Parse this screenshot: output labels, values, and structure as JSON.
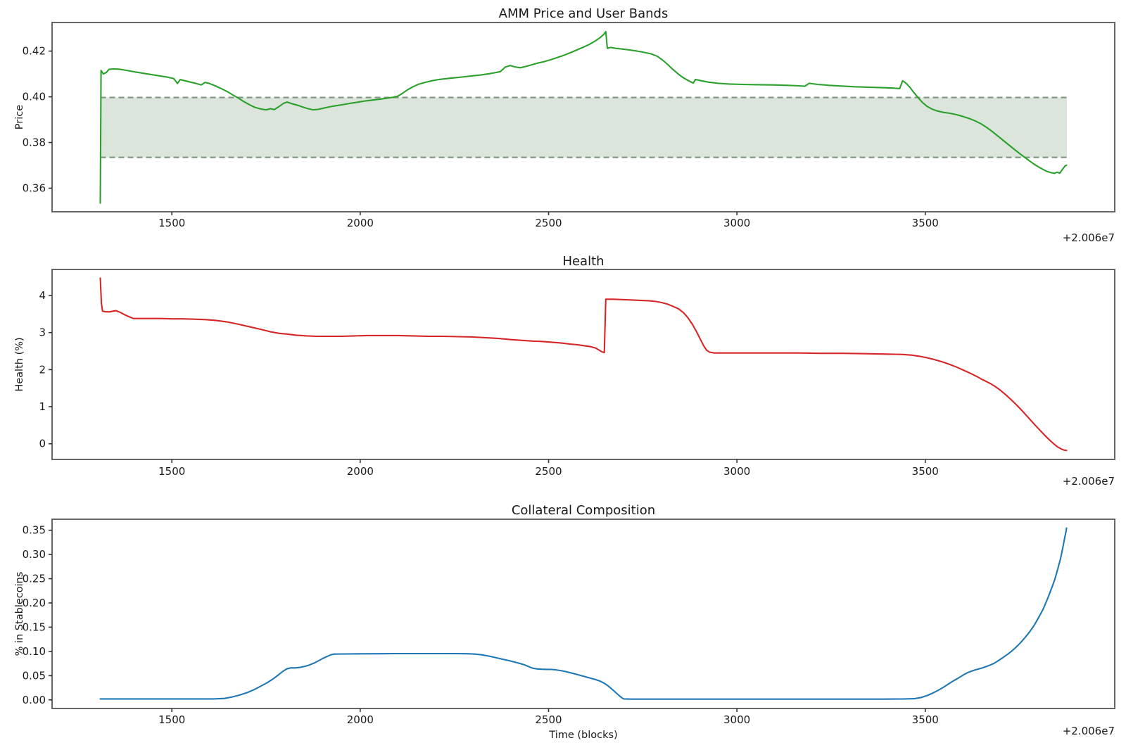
{
  "figure_background": "#ffffff",
  "spine_color": "#555555",
  "chart_data": [
    {
      "type": "line",
      "title": "AMM Price and User Bands",
      "xlabel": "",
      "ylabel": "Price",
      "x_offset_label": "+2.006e7",
      "xlim": [
        1182,
        4003
      ],
      "ylim": [
        0.3497,
        0.4325
      ],
      "xticks": [
        1500,
        2000,
        2500,
        3000,
        3500
      ],
      "xtick_labels": [
        "1500",
        "2000",
        "2500",
        "3000",
        "3500"
      ],
      "yticks": [
        0.36,
        0.38,
        0.4,
        0.42
      ],
      "ytick_labels": [
        "0.36",
        "0.38",
        "0.40",
        "0.42"
      ],
      "grid": false,
      "legend": "none",
      "line_color": "#2ca02c",
      "band": {
        "ymin": 0.3735,
        "ymax": 0.3997,
        "xmin": 1310,
        "xmax": 3876,
        "fill_color": "#dce5dc",
        "edge_color": "#7f957f",
        "edge_style": "dashed"
      },
      "series": [
        {
          "x": [
            1310,
            1312,
            1318,
            1326,
            1333,
            1345,
            1360,
            1378,
            1398,
            1420,
            1442,
            1465,
            1488,
            1505,
            1515,
            1522,
            1535,
            1550,
            1565,
            1578,
            1588,
            1600,
            1615,
            1632,
            1648,
            1662,
            1675,
            1690,
            1705,
            1720,
            1735,
            1750,
            1762,
            1772,
            1785,
            1797,
            1806,
            1818,
            1832,
            1848,
            1862,
            1875,
            1888,
            1902,
            1918,
            1935,
            1955,
            1975,
            1995,
            2015,
            2035,
            2055,
            2072,
            2088,
            2100,
            2112,
            2125,
            2140,
            2155,
            2172,
            2190,
            2210,
            2232,
            2255,
            2278,
            2300,
            2322,
            2342,
            2360,
            2372,
            2385,
            2398,
            2410,
            2425,
            2440,
            2455,
            2470,
            2488,
            2505,
            2522,
            2540,
            2558,
            2575,
            2592,
            2608,
            2623,
            2636,
            2646,
            2652,
            2656,
            2665,
            2678,
            2695,
            2715,
            2735,
            2755,
            2772,
            2788,
            2802,
            2816,
            2830,
            2844,
            2858,
            2872,
            2884,
            2890,
            2905,
            2925,
            2950,
            2980,
            3015,
            3055,
            3095,
            3135,
            3165,
            3180,
            3192,
            3215,
            3245,
            3278,
            3312,
            3348,
            3385,
            3415,
            3432,
            3440,
            3450,
            3460,
            3470,
            3480,
            3492,
            3505,
            3518,
            3532,
            3548,
            3565,
            3582,
            3598,
            3615,
            3632,
            3648,
            3663,
            3678,
            3693,
            3708,
            3723,
            3738,
            3752,
            3765,
            3778,
            3790,
            3802,
            3813,
            3824,
            3834,
            3843,
            3850,
            3857,
            3864,
            3871,
            3875
          ],
          "y": [
            0.3535,
            0.4115,
            0.41,
            0.4106,
            0.412,
            0.4122,
            0.4121,
            0.4116,
            0.411,
            0.4104,
            0.4098,
            0.4092,
            0.4086,
            0.408,
            0.4058,
            0.4075,
            0.407,
            0.4064,
            0.4058,
            0.4052,
            0.4063,
            0.4058,
            0.4048,
            0.4035,
            0.4022,
            0.4008,
            0.3996,
            0.398,
            0.3966,
            0.3954,
            0.3947,
            0.3943,
            0.3948,
            0.3944,
            0.3958,
            0.3972,
            0.3977,
            0.397,
            0.3964,
            0.3955,
            0.3948,
            0.3943,
            0.3945,
            0.395,
            0.3956,
            0.3961,
            0.3966,
            0.3972,
            0.3977,
            0.3982,
            0.3986,
            0.399,
            0.3994,
            0.3998,
            0.4003,
            0.4015,
            0.403,
            0.4044,
            0.4055,
            0.4063,
            0.407,
            0.4076,
            0.408,
            0.4084,
            0.4088,
            0.4092,
            0.4096,
            0.4101,
            0.4106,
            0.411,
            0.413,
            0.4137,
            0.4131,
            0.4127,
            0.4133,
            0.414,
            0.4147,
            0.4154,
            0.4162,
            0.4171,
            0.4181,
            0.4193,
            0.4205,
            0.4217,
            0.4229,
            0.4243,
            0.4258,
            0.4272,
            0.4285,
            0.4212,
            0.4216,
            0.4212,
            0.4209,
            0.4205,
            0.42,
            0.4194,
            0.4188,
            0.4178,
            0.4162,
            0.4142,
            0.412,
            0.41,
            0.4083,
            0.407,
            0.406,
            0.4076,
            0.407,
            0.4064,
            0.4059,
            0.4056,
            0.4054,
            0.4053,
            0.4052,
            0.405,
            0.4048,
            0.4046,
            0.4059,
            0.4054,
            0.405,
            0.4047,
            0.4044,
            0.4042,
            0.404,
            0.4038,
            0.4036,
            0.407,
            0.4058,
            0.404,
            0.4018,
            0.3998,
            0.3976,
            0.3958,
            0.3946,
            0.3938,
            0.3932,
            0.3928,
            0.3922,
            0.3915,
            0.3906,
            0.3895,
            0.3882,
            0.3866,
            0.3848,
            0.3828,
            0.3808,
            0.3788,
            0.3768,
            0.375,
            0.3734,
            0.3718,
            0.3704,
            0.3692,
            0.3682,
            0.3673,
            0.3668,
            0.3665,
            0.367,
            0.3666,
            0.3682,
            0.3697,
            0.3701
          ]
        }
      ]
    },
    {
      "type": "line",
      "title": "Health",
      "xlabel": "",
      "ylabel": "Health (%)",
      "x_offset_label": "+2.006e7",
      "xlim": [
        1182,
        4003
      ],
      "ylim": [
        -0.423,
        4.703
      ],
      "xticks": [
        1500,
        2000,
        2500,
        3000,
        3500
      ],
      "xtick_labels": [
        "1500",
        "2000",
        "2500",
        "3000",
        "3500"
      ],
      "yticks": [
        0,
        1,
        2,
        3,
        4
      ],
      "ytick_labels": [
        "0",
        "1",
        "2",
        "3",
        "4"
      ],
      "grid": false,
      "legend": "none",
      "line_color": "#d62728",
      "series": [
        {
          "x": [
            1310,
            1313,
            1316,
            1325,
            1336,
            1344,
            1352,
            1362,
            1375,
            1388,
            1398,
            1415,
            1440,
            1470,
            1500,
            1530,
            1560,
            1590,
            1615,
            1645,
            1675,
            1705,
            1735,
            1762,
            1785,
            1805,
            1830,
            1858,
            1885,
            1915,
            1950,
            1985,
            2020,
            2060,
            2100,
            2140,
            2180,
            2220,
            2260,
            2300,
            2335,
            2368,
            2400,
            2430,
            2458,
            2482,
            2508,
            2532,
            2556,
            2578,
            2598,
            2612,
            2625,
            2634,
            2642,
            2648,
            2652,
            2672,
            2695,
            2718,
            2742,
            2765,
            2785,
            2800,
            2815,
            2830,
            2845,
            2858,
            2870,
            2882,
            2893,
            2903,
            2912,
            2920,
            2928,
            2940,
            2980,
            3040,
            3100,
            3160,
            3220,
            3280,
            3340,
            3400,
            3440,
            3465,
            3485,
            3505,
            3525,
            3545,
            3565,
            3585,
            3605,
            3622,
            3638,
            3650,
            3660,
            3672,
            3685,
            3700,
            3715,
            3730,
            3745,
            3760,
            3775,
            3790,
            3805,
            3818,
            3830,
            3842,
            3852,
            3861,
            3868,
            3875
          ],
          "y": [
            4.47,
            3.8,
            3.58,
            3.56,
            3.56,
            3.58,
            3.59,
            3.55,
            3.48,
            3.42,
            3.38,
            3.38,
            3.38,
            3.38,
            3.37,
            3.37,
            3.36,
            3.35,
            3.33,
            3.29,
            3.23,
            3.16,
            3.09,
            3.02,
            2.98,
            2.96,
            2.93,
            2.91,
            2.9,
            2.9,
            2.9,
            2.91,
            2.92,
            2.92,
            2.92,
            2.91,
            2.9,
            2.9,
            2.89,
            2.88,
            2.86,
            2.84,
            2.81,
            2.79,
            2.77,
            2.76,
            2.74,
            2.72,
            2.69,
            2.67,
            2.64,
            2.62,
            2.58,
            2.53,
            2.48,
            2.46,
            3.9,
            3.9,
            3.89,
            3.88,
            3.87,
            3.86,
            3.84,
            3.81,
            3.77,
            3.71,
            3.64,
            3.54,
            3.4,
            3.22,
            3.02,
            2.82,
            2.64,
            2.52,
            2.47,
            2.45,
            2.45,
            2.45,
            2.45,
            2.45,
            2.44,
            2.44,
            2.43,
            2.42,
            2.41,
            2.39,
            2.36,
            2.32,
            2.27,
            2.21,
            2.14,
            2.06,
            1.97,
            1.89,
            1.81,
            1.74,
            1.69,
            1.63,
            1.55,
            1.44,
            1.31,
            1.17,
            1.02,
            0.86,
            0.69,
            0.52,
            0.36,
            0.22,
            0.1,
            -0.01,
            -0.09,
            -0.14,
            -0.17,
            -0.18
          ]
        }
      ]
    },
    {
      "type": "line",
      "title": "Collateral Composition",
      "xlabel": "Time (blocks)",
      "ylabel": "% in Stablecoins",
      "x_offset_label": "+2.006e7",
      "xlim": [
        1182,
        4003
      ],
      "ylim": [
        -0.01775,
        0.37275
      ],
      "xticks": [
        1500,
        2000,
        2500,
        3000,
        3500
      ],
      "xtick_labels": [
        "1500",
        "2000",
        "2500",
        "3000",
        "3500"
      ],
      "yticks": [
        0.0,
        0.05,
        0.1,
        0.15,
        0.2,
        0.25,
        0.3,
        0.35
      ],
      "ytick_labels": [
        "0.00",
        "0.05",
        "0.10",
        "0.15",
        "0.20",
        "0.25",
        "0.30",
        "0.35"
      ],
      "grid": false,
      "legend": "none",
      "line_color": "#1f77b4",
      "series": [
        {
          "x": [
            1310,
            1400,
            1500,
            1560,
            1610,
            1640,
            1660,
            1680,
            1700,
            1718,
            1735,
            1752,
            1768,
            1782,
            1795,
            1805,
            1815,
            1828,
            1840,
            1852,
            1865,
            1878,
            1890,
            1902,
            1913,
            1922,
            1930,
            1960,
            2000,
            2050,
            2090,
            2130,
            2170,
            2210,
            2250,
            2285,
            2305,
            2322,
            2340,
            2358,
            2375,
            2392,
            2408,
            2422,
            2435,
            2445,
            2452,
            2460,
            2470,
            2482,
            2495,
            2508,
            2520,
            2532,
            2545,
            2558,
            2570,
            2582,
            2592,
            2600,
            2608,
            2616,
            2624,
            2632,
            2640,
            2648,
            2656,
            2664,
            2672,
            2680,
            2688,
            2695,
            2700,
            2720,
            2760,
            2820,
            2900,
            3000,
            3100,
            3200,
            3300,
            3380,
            3440,
            3470,
            3490,
            3505,
            3520,
            3535,
            3548,
            3560,
            3572,
            3583,
            3593,
            3602,
            3612,
            3622,
            3632,
            3642,
            3652,
            3662,
            3672,
            3682,
            3690,
            3698,
            3706,
            3714,
            3722,
            3730,
            3738,
            3746,
            3754,
            3762,
            3770,
            3778,
            3786,
            3793,
            3800,
            3807,
            3814,
            3820,
            3826,
            3832,
            3838,
            3844,
            3849,
            3854,
            3859,
            3863,
            3867,
            3871,
            3874,
            3875
          ],
          "y": [
            0.002,
            0.002,
            0.002,
            0.002,
            0.002,
            0.003,
            0.006,
            0.01,
            0.015,
            0.021,
            0.028,
            0.035,
            0.043,
            0.051,
            0.059,
            0.064,
            0.066,
            0.066,
            0.067,
            0.069,
            0.072,
            0.076,
            0.081,
            0.086,
            0.09,
            0.093,
            0.0945,
            0.0948,
            0.095,
            0.0952,
            0.0955,
            0.0955,
            0.0955,
            0.0955,
            0.0955,
            0.0952,
            0.0945,
            0.093,
            0.0905,
            0.0875,
            0.0845,
            0.0815,
            0.0785,
            0.0755,
            0.0725,
            0.0695,
            0.067,
            0.065,
            0.0638,
            0.0632,
            0.063,
            0.0628,
            0.062,
            0.0605,
            0.0585,
            0.056,
            0.0535,
            0.051,
            0.049,
            0.0472,
            0.0455,
            0.0438,
            0.042,
            0.04,
            0.0375,
            0.0342,
            0.03,
            0.025,
            0.0195,
            0.014,
            0.0085,
            0.004,
            0.002,
            0.0015,
            0.0015,
            0.0015,
            0.0015,
            0.0015,
            0.0015,
            0.0015,
            0.0015,
            0.0015,
            0.0018,
            0.0025,
            0.005,
            0.009,
            0.014,
            0.02,
            0.026,
            0.032,
            0.038,
            0.043,
            0.0475,
            0.052,
            0.056,
            0.0592,
            0.0618,
            0.064,
            0.0662,
            0.0688,
            0.0718,
            0.0752,
            0.079,
            0.083,
            0.0872,
            0.0915,
            0.096,
            0.101,
            0.1065,
            0.1125,
            0.119,
            0.126,
            0.1335,
            0.1415,
            0.15,
            0.159,
            0.1685,
            0.1785,
            0.189,
            0.2,
            0.2115,
            0.2235,
            0.236,
            0.249,
            0.2625,
            0.2765,
            0.291,
            0.306,
            0.3215,
            0.3375,
            0.349,
            0.3545
          ]
        }
      ]
    }
  ]
}
